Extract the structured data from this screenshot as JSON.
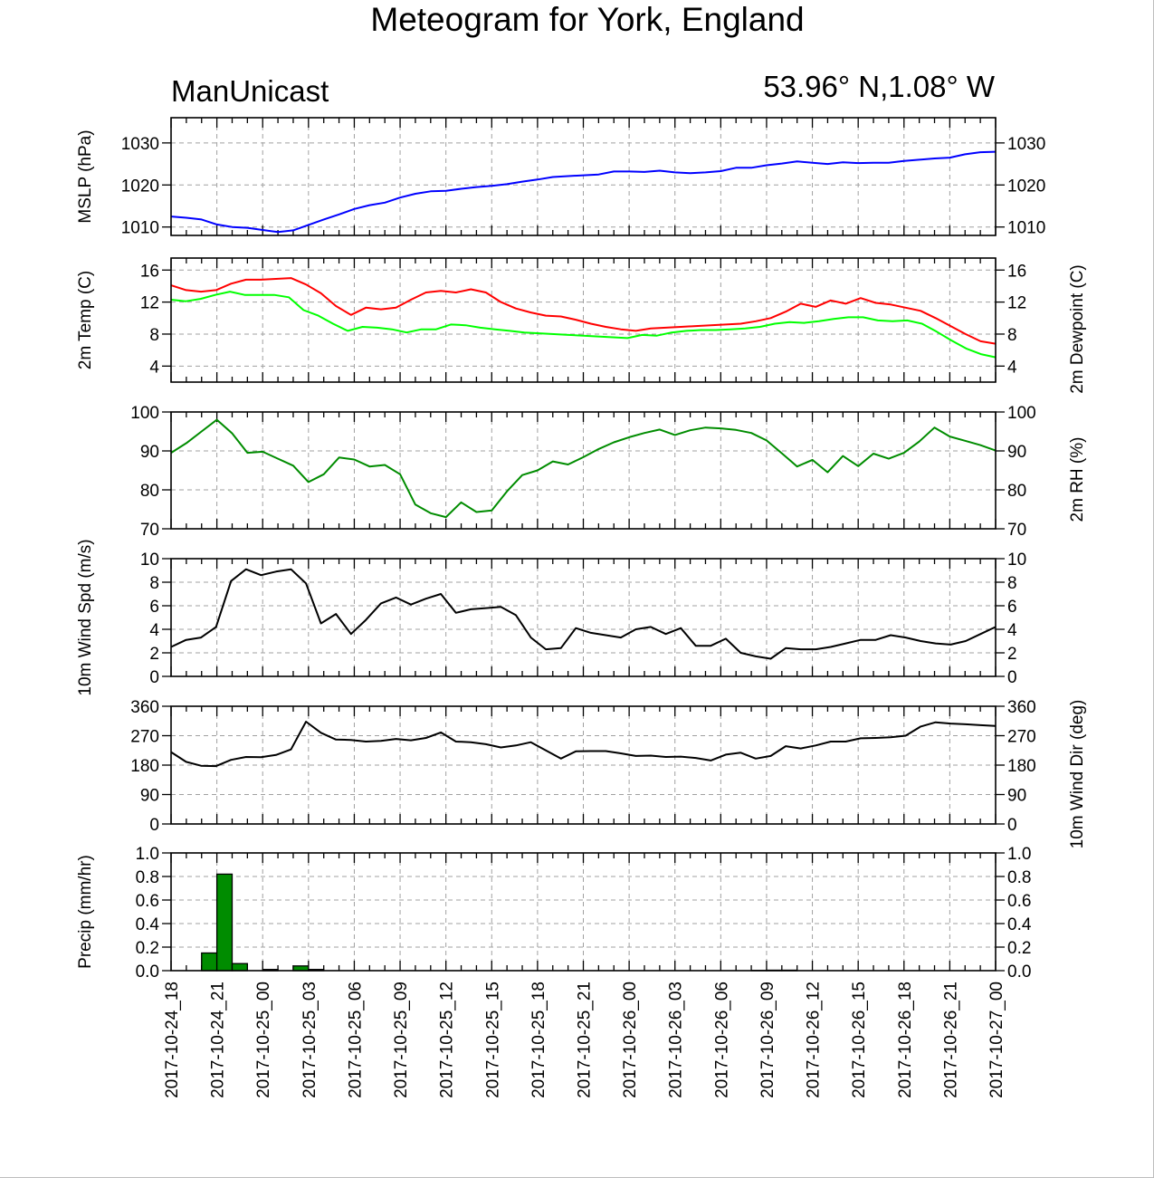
{
  "title": "Meteogram for York, England",
  "left_subtitle": "ManUnicast",
  "right_subtitle": "53.96° N,1.08° W",
  "colors": {
    "mslp": "#0000ff",
    "temp": "#ff0000",
    "dewpoint": "#00ff00",
    "rh": "#008c00",
    "wind_speed": "#000000",
    "wind_dir": "#000000",
    "precip_fill": "#008c00",
    "precip_edge": "#000000"
  },
  "chart_data": [
    {
      "type": "line",
      "x_tick_labels": [
        "2017-10-24_18",
        "2017-10-24_21",
        "2017-10-25_00",
        "2017-10-25_03",
        "2017-10-25_06",
        "2017-10-25_09",
        "2017-10-25_12",
        "2017-10-25_15",
        "2017-10-25_18",
        "2017-10-25_21",
        "2017-10-26_00",
        "2017-10-26_03",
        "2017-10-26_06",
        "2017-10-26_09",
        "2017-10-26_12",
        "2017-10-26_15",
        "2017-10-26_18",
        "2017-10-26_21",
        "2017-10-27_00"
      ],
      "xlim_hours": [
        0,
        54
      ],
      "ylabel": "MSLP (hPa)",
      "ylabel_right": "",
      "ylim": [
        1008,
        1036
      ],
      "yticks": [
        1010,
        1020,
        1030
      ],
      "series": [
        {
          "color_key": "mslp",
          "values": [
            1012.5,
            1012.2,
            1011.8,
            1010.6,
            1010.0,
            1009.8,
            1009.3,
            1008.8,
            1009.2,
            1010.5,
            1011.8,
            1013.0,
            1014.3,
            1015.2,
            1015.8,
            1017.0,
            1017.9,
            1018.5,
            1018.6,
            1019.1,
            1019.5,
            1019.8,
            1020.2,
            1020.8,
            1021.3,
            1021.9,
            1022.1,
            1022.3,
            1022.5,
            1023.2,
            1023.2,
            1023.1,
            1023.4,
            1023.0,
            1022.8,
            1023.0,
            1023.3,
            1024.1,
            1024.1,
            1024.7,
            1025.1,
            1025.6,
            1025.3,
            1025.0,
            1025.4,
            1025.2,
            1025.3,
            1025.3,
            1025.7,
            1026.0,
            1026.3,
            1026.5,
            1027.3,
            1027.8,
            1027.9
          ]
        }
      ]
    },
    {
      "type": "line",
      "ylabel": "2m Temp (C)",
      "ylabel_right": "2m Dewpoint (C)",
      "ylim": [
        2,
        17.5
      ],
      "yticks": [
        4,
        8,
        12,
        16
      ],
      "series": [
        {
          "color_key": "temp",
          "values": [
            14.1,
            13.5,
            13.3,
            13.5,
            14.3,
            14.8,
            14.8,
            14.9,
            15.0,
            14.2,
            13.1,
            11.5,
            10.4,
            11.3,
            11.1,
            11.3,
            12.3,
            13.2,
            13.4,
            13.2,
            13.6,
            13.2,
            12.0,
            11.2,
            10.7,
            10.3,
            10.2,
            9.8,
            9.3,
            8.9,
            8.6,
            8.4,
            8.7,
            8.8,
            8.9,
            9.0,
            9.1,
            9.2,
            9.3,
            9.6,
            10.0,
            10.8,
            11.8,
            11.4,
            12.2,
            11.8,
            12.5,
            11.9,
            11.7,
            11.3,
            10.9,
            10.0,
            9.0,
            8.0,
            7.1,
            6.8
          ]
        },
        {
          "color_key": "dewpoint",
          "values": [
            12.3,
            12.1,
            12.4,
            12.9,
            13.3,
            12.9,
            12.9,
            12.9,
            12.6,
            11.0,
            10.3,
            9.3,
            8.4,
            8.9,
            8.8,
            8.6,
            8.2,
            8.6,
            8.6,
            9.2,
            9.1,
            8.8,
            8.6,
            8.4,
            8.2,
            8.1,
            8.0,
            7.9,
            7.8,
            7.7,
            7.6,
            7.5,
            7.9,
            7.8,
            8.2,
            8.4,
            8.5,
            8.5,
            8.6,
            8.7,
            8.9,
            9.3,
            9.5,
            9.4,
            9.6,
            9.9,
            10.1,
            10.1,
            9.7,
            9.6,
            9.7,
            9.3,
            8.3,
            7.2,
            6.2,
            5.5,
            5.1
          ]
        }
      ]
    },
    {
      "type": "line",
      "ylabel": "",
      "ylabel_right": "2m RH (%)",
      "ylim": [
        70,
        100
      ],
      "yticks": [
        70,
        80,
        90,
        100
      ],
      "series": [
        {
          "color_key": "rh",
          "values": [
            89.5,
            92.0,
            95.0,
            98.0,
            94.5,
            89.5,
            89.8,
            88.0,
            86.2,
            82.0,
            84.0,
            88.3,
            87.8,
            86.0,
            86.4,
            84.0,
            76.2,
            74.0,
            73.0,
            76.8,
            74.3,
            74.7,
            79.6,
            83.8,
            85.0,
            87.3,
            86.5,
            88.4,
            90.5,
            92.2,
            93.5,
            94.6,
            95.5,
            94.1,
            95.3,
            96.0,
            95.8,
            95.4,
            94.6,
            92.7,
            89.4,
            86.0,
            87.7,
            84.5,
            88.7,
            86.1,
            89.3,
            88.0,
            89.5,
            92.4,
            96.0,
            93.7,
            92.6,
            91.5,
            90.1
          ]
        }
      ]
    },
    {
      "type": "line",
      "ylabel": "10m Wind Spd (m/s)",
      "ylabel_right": "",
      "ylim": [
        0,
        10
      ],
      "yticks": [
        0,
        2,
        4,
        6,
        8,
        10
      ],
      "series": [
        {
          "color_key": "wind_speed",
          "values": [
            2.5,
            3.1,
            3.3,
            4.2,
            8.1,
            9.1,
            8.6,
            8.9,
            9.1,
            7.9,
            4.5,
            5.3,
            3.6,
            4.8,
            6.2,
            6.7,
            6.1,
            6.6,
            7.0,
            5.4,
            5.7,
            5.8,
            5.9,
            5.2,
            3.3,
            2.3,
            2.4,
            4.1,
            3.7,
            3.5,
            3.3,
            4.0,
            4.2,
            3.6,
            4.1,
            2.6,
            2.6,
            3.2,
            2.0,
            1.7,
            1.5,
            2.4,
            2.3,
            2.3,
            2.5,
            2.8,
            3.1,
            3.1,
            3.5,
            3.3,
            3.0,
            2.8,
            2.7,
            3.0,
            3.6,
            4.2
          ]
        }
      ]
    },
    {
      "type": "line",
      "ylabel": "",
      "ylabel_right": "10m Wind Dir (deg)",
      "ylim": [
        0,
        360
      ],
      "yticks": [
        0,
        90,
        180,
        270,
        360
      ],
      "series": [
        {
          "color_key": "wind_dir",
          "values": [
            220,
            190,
            178,
            177,
            196,
            205,
            204,
            211,
            228,
            313,
            279,
            258,
            257,
            252,
            254,
            260,
            256,
            263,
            280,
            252,
            250,
            244,
            234,
            240,
            250,
            225,
            200,
            222,
            223,
            223,
            216,
            208,
            209,
            205,
            206,
            202,
            194,
            212,
            218,
            200,
            208,
            238,
            231,
            240,
            252,
            252,
            262,
            263,
            265,
            270,
            298,
            311,
            307,
            305,
            302,
            300
          ]
        }
      ]
    },
    {
      "type": "bar",
      "ylabel": "Precip (mm/hr)",
      "ylabel_right": "",
      "ylim": [
        0,
        1.0
      ],
      "yticks": [
        "0.0",
        "0.2",
        "0.4",
        "0.6",
        "0.8",
        "1.0"
      ],
      "series": [
        {
          "color_key": "precip_fill",
          "values": [
            0,
            0,
            0.15,
            0.82,
            0.06,
            0,
            0.01,
            0,
            0.04,
            0.01,
            0,
            0,
            0,
            0,
            0,
            0,
            0,
            0,
            0,
            0,
            0,
            0,
            0,
            0,
            0,
            0,
            0,
            0,
            0,
            0,
            0,
            0,
            0,
            0,
            0,
            0,
            0,
            0,
            0.002,
            0.004,
            0.004,
            0,
            0,
            0,
            0,
            0,
            0,
            0,
            0,
            0,
            0,
            0,
            0,
            0
          ]
        }
      ]
    }
  ]
}
